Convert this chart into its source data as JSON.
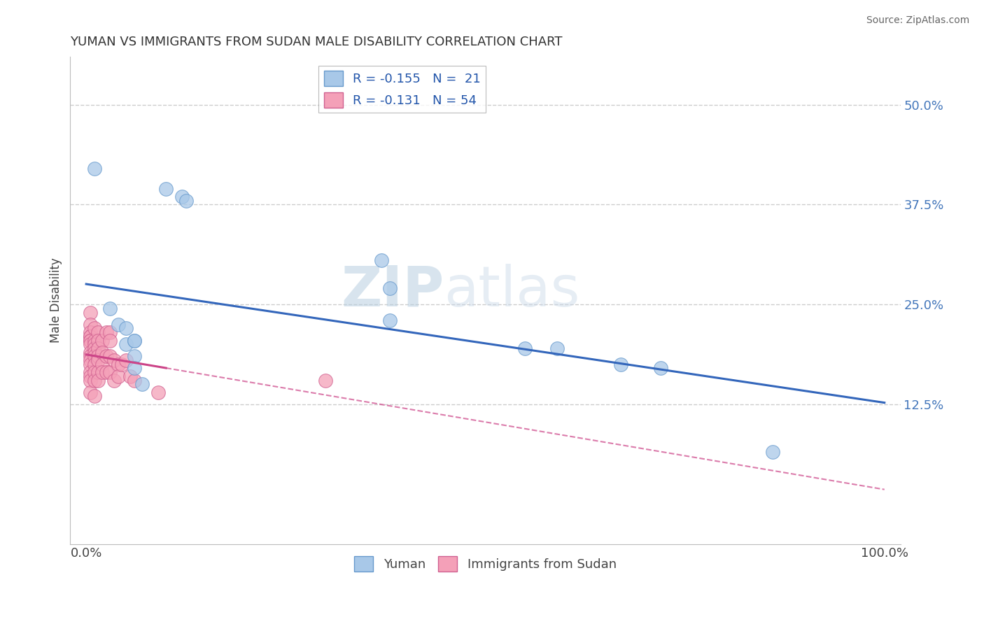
{
  "title": "YUMAN VS IMMIGRANTS FROM SUDAN MALE DISABILITY CORRELATION CHART",
  "source": "Source: ZipAtlas.com",
  "ylabel": "Male Disability",
  "xlim": [
    -0.02,
    1.02
  ],
  "ylim": [
    -0.05,
    0.56
  ],
  "xtick_vals": [
    0.0,
    0.25,
    0.5,
    0.75,
    1.0
  ],
  "xtick_labels": [
    "0.0%",
    "",
    "",
    "",
    "100.0%"
  ],
  "ytick_vals": [
    0.125,
    0.25,
    0.375,
    0.5
  ],
  "ytick_labels": [
    "12.5%",
    "25.0%",
    "37.5%",
    "50.0%"
  ],
  "legend_r1": "R = -0.155",
  "legend_n1": "N =  21",
  "legend_r2": "R = -0.131",
  "legend_n2": "N = 54",
  "blue_scatter_color": "#a8c8e8",
  "blue_edge_color": "#6699cc",
  "pink_scatter_color": "#f4a0b8",
  "pink_edge_color": "#d06090",
  "blue_line_color": "#3366bb",
  "pink_line_color": "#cc4488",
  "grid_color": "#cccccc",
  "watermark": "ZIPatlas",
  "yuman_x": [
    0.01,
    0.1,
    0.12,
    0.125,
    0.37,
    0.38,
    0.38,
    0.55,
    0.59,
    0.67,
    0.72,
    0.86,
    0.03,
    0.04,
    0.05,
    0.05,
    0.06,
    0.06,
    0.06,
    0.06,
    0.07
  ],
  "yuman_y": [
    0.42,
    0.395,
    0.385,
    0.38,
    0.305,
    0.27,
    0.23,
    0.195,
    0.195,
    0.175,
    0.17,
    0.065,
    0.245,
    0.225,
    0.22,
    0.2,
    0.205,
    0.205,
    0.185,
    0.17,
    0.15
  ],
  "sudan_x": [
    0.005,
    0.005,
    0.005,
    0.005,
    0.005,
    0.005,
    0.005,
    0.005,
    0.005,
    0.005,
    0.005,
    0.005,
    0.005,
    0.005,
    0.005,
    0.005,
    0.01,
    0.01,
    0.01,
    0.01,
    0.01,
    0.01,
    0.01,
    0.01,
    0.01,
    0.01,
    0.015,
    0.015,
    0.015,
    0.015,
    0.015,
    0.015,
    0.015,
    0.02,
    0.02,
    0.02,
    0.02,
    0.025,
    0.025,
    0.025,
    0.03,
    0.03,
    0.03,
    0.03,
    0.035,
    0.035,
    0.04,
    0.04,
    0.045,
    0.05,
    0.055,
    0.06,
    0.09,
    0.3
  ],
  "sudan_y": [
    0.24,
    0.225,
    0.215,
    0.21,
    0.21,
    0.205,
    0.205,
    0.2,
    0.19,
    0.185,
    0.18,
    0.175,
    0.165,
    0.16,
    0.155,
    0.14,
    0.22,
    0.205,
    0.2,
    0.195,
    0.19,
    0.185,
    0.175,
    0.165,
    0.155,
    0.135,
    0.215,
    0.205,
    0.195,
    0.185,
    0.18,
    0.165,
    0.155,
    0.205,
    0.19,
    0.175,
    0.165,
    0.215,
    0.185,
    0.165,
    0.215,
    0.205,
    0.185,
    0.165,
    0.18,
    0.155,
    0.175,
    0.16,
    0.175,
    0.18,
    0.16,
    0.155,
    0.14,
    0.155
  ]
}
